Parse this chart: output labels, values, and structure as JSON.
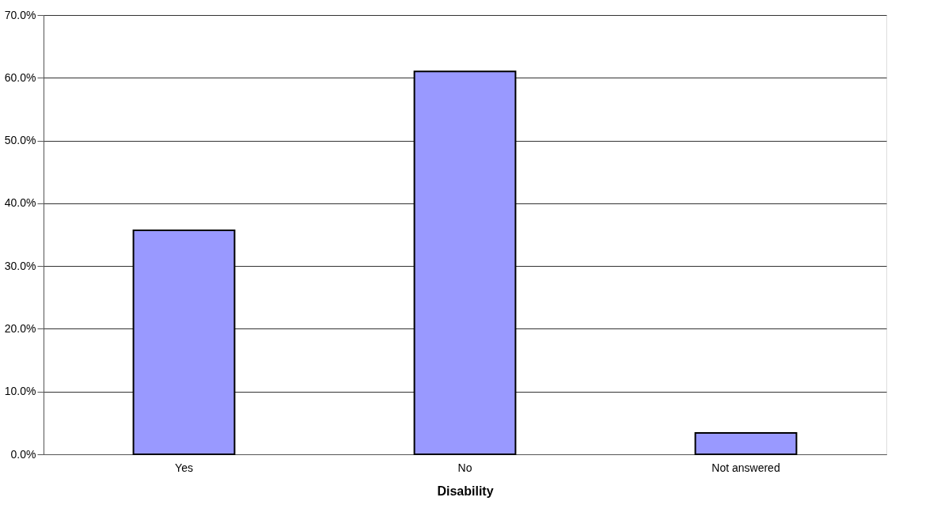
{
  "chart_data": {
    "type": "bar",
    "xlabel": "Disability",
    "categories": [
      "Yes",
      "No",
      "Not answered"
    ],
    "values": [
      35.7,
      61.0,
      3.4
    ],
    "color": "#9999ff",
    "ylim": [
      0,
      70
    ],
    "yticks": [
      {
        "value": 0,
        "label": "0.0%"
      },
      {
        "value": 10,
        "label": "10.0%"
      },
      {
        "value": 20,
        "label": "20.0%"
      },
      {
        "value": 30,
        "label": "30.0%"
      },
      {
        "value": 40,
        "label": "40.0%"
      },
      {
        "value": 50,
        "label": "50.0%"
      },
      {
        "value": 60,
        "label": "60.0%"
      },
      {
        "value": 70,
        "label": "70.0%"
      }
    ],
    "grid": "y"
  }
}
